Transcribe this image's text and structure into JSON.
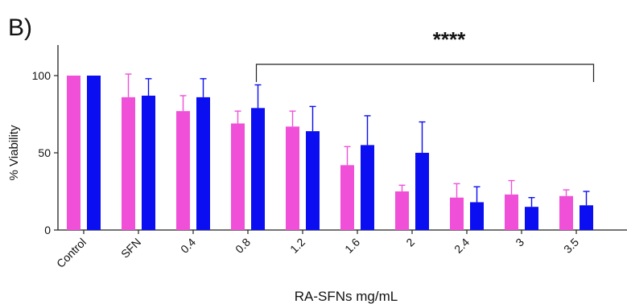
{
  "panel_label": "B)",
  "chart_data": {
    "type": "bar",
    "title": "",
    "xlabel": "RA-SFNs  mg/mL",
    "ylabel": "% Viability",
    "ylim": [
      0,
      120
    ],
    "yticks": [
      0,
      50,
      100
    ],
    "grid": false,
    "legend": "none",
    "categories": [
      "Control",
      "SFN",
      "0.4",
      "0.8",
      "1.2",
      "1.6",
      "2",
      "2.4",
      "3",
      "3.5"
    ],
    "series": [
      {
        "color": "#f050d8",
        "values": [
          100,
          86,
          77,
          69,
          67,
          42,
          25,
          21,
          23,
          22
        ],
        "errors": [
          0,
          15,
          10,
          8,
          10,
          12,
          4,
          9,
          9,
          4
        ]
      },
      {
        "color": "#0b0ef0",
        "values": [
          100,
          87,
          86,
          79,
          64,
          55,
          50,
          18,
          15,
          16
        ],
        "errors": [
          0,
          11,
          12,
          15,
          16,
          19,
          20,
          10,
          6,
          9
        ]
      }
    ],
    "annotations": [
      {
        "text": "****",
        "type": "significance-bracket",
        "from_category": "0.8",
        "to_category": "3.5"
      }
    ]
  }
}
